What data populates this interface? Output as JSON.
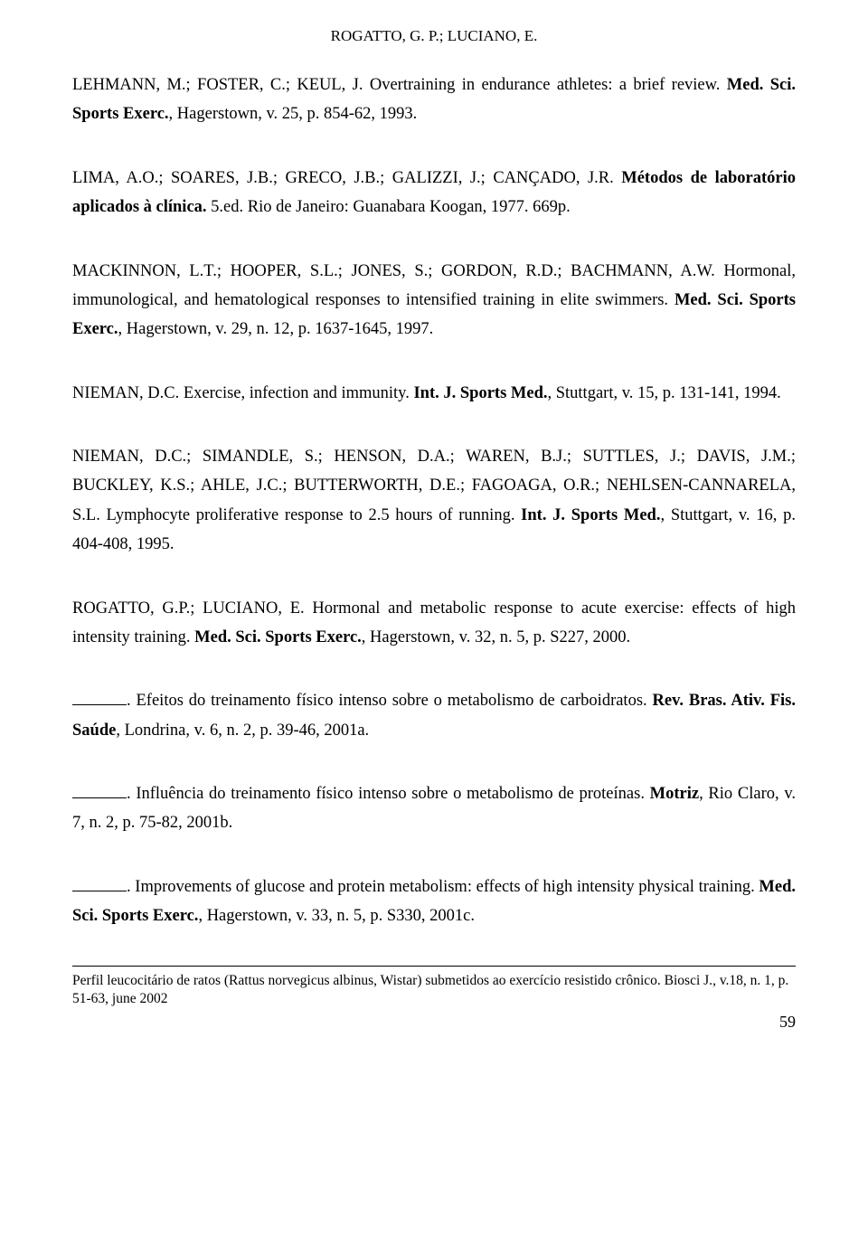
{
  "running_head": "ROGATTO, G. P.; LUCIANO, E.",
  "refs": {
    "r1": {
      "a": "LEHMANN, M.; FOSTER, C.; KEUL, J. Overtraining in endurance athletes: a brief review. ",
      "b": "Med. Sci. Sports Exerc.",
      "c": ", Hagerstown, v. 25, p. 854-62, 1993."
    },
    "r2": {
      "a": "LIMA, A.O.; SOARES, J.B.; GRECO, J.B.; GALIZZI, J.; CANÇADO, J.R. ",
      "b": "Métodos de laboratório aplicados à clínica.",
      "c": " 5.ed. Rio de Janeiro: Guanabara Koogan, 1977. 669p."
    },
    "r3": {
      "a": "MACKINNON, L.T.; HOOPER, S.L.; JONES, S.; GORDON, R.D.; BACHMANN, A.W. Hormonal, immunological, and hematological responses to intensified training in elite swimmers. ",
      "b": "Med. Sci. Sports Exerc.",
      "c": ", Hagerstown, v. 29, n. 12, p. 1637-1645, 1997."
    },
    "r4": {
      "a": "NIEMAN, D.C. Exercise, infection and immunity. ",
      "b": "Int. J. Sports Med.",
      "c": ", Stuttgart, v. 15, p. 131-141, 1994."
    },
    "r5": {
      "a": "NIEMAN, D.C.; SIMANDLE, S.; HENSON, D.A.; WAREN, B.J.; SUTTLES, J.; DAVIS, J.M.; BUCKLEY, K.S.; AHLE, J.C.; BUTTERWORTH, D.E.; FAGOAGA, O.R.; NEHLSEN-CANNARELA, S.L. Lymphocyte proliferative response to 2.5 hours of running. ",
      "b": "Int. J. Sports Med.",
      "c": ", Stuttgart, v. 16, p. 404-408, 1995."
    },
    "r6": {
      "a": "ROGATTO, G.P.; LUCIANO, E.  Hormonal and metabolic response to acute exercise: effects of high intensity training. ",
      "b": "Med. Sci. Sports Exerc.",
      "c": ", Hagerstown, v. 32, n. 5, p. S227, 2000."
    },
    "r7": {
      "a": ".  Efeitos do treinamento físico intenso sobre o metabolismo de carboidratos. ",
      "b": "Rev. Bras. Ativ. Fis. Saúde",
      "c": ", Londrina, v. 6, n. 2, p. 39-46, 2001a."
    },
    "r8": {
      "a": ".  Influência do treinamento físico intenso sobre o metabolismo de proteínas. ",
      "b": "Motriz",
      "c": ", Rio Claro, v. 7, n. 2, p. 75-82, 2001b."
    },
    "r9": {
      "a": ".  Improvements of glucose and protein metabolism: effects of high intensity physical training. ",
      "b": "Med. Sci. Sports Exerc.",
      "c": ", Hagerstown, v. 33, n. 5, p. S330, 2001c."
    }
  },
  "footer": {
    "pre": "Perfil leucocitário de ratos (",
    "ital": "Rattus norvegicus albinus, Wistar",
    "post1": ") submetidos ao exercício resistido crônico. ",
    "journal": "Biosci J.",
    "post2": ", v.18, n. 1, p. 51-63, june 2002"
  },
  "page_number": "59"
}
